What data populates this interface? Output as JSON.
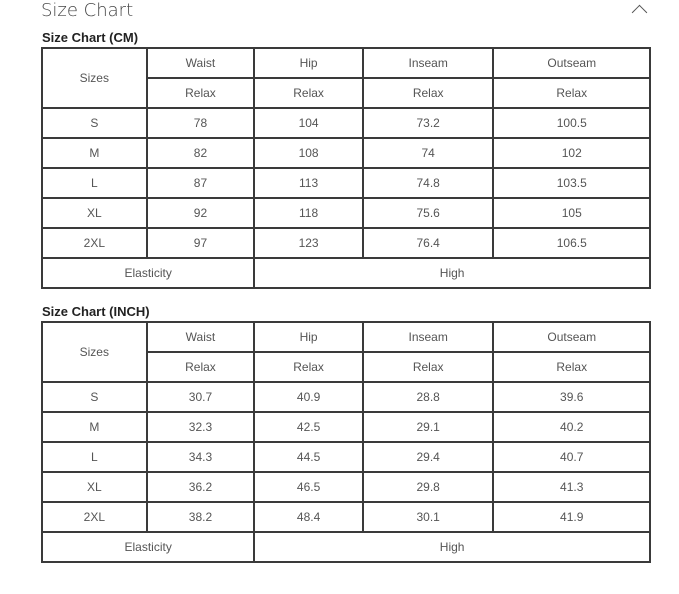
{
  "header": {
    "title": "Size Chart",
    "toggle_icon": "chevron-up-icon"
  },
  "tables": [
    {
      "title": "Size Chart (CM)",
      "sizes_label": "Sizes",
      "columns": [
        "Waist",
        "Hip",
        "Inseam",
        "Outseam"
      ],
      "subheader": [
        "Relax",
        "Relax",
        "Relax",
        "Relax"
      ],
      "rows": [
        [
          "S",
          "78",
          "104",
          "73.2",
          "100.5"
        ],
        [
          "M",
          "82",
          "108",
          "74",
          "102"
        ],
        [
          "L",
          "87",
          "113",
          "74.8",
          "103.5"
        ],
        [
          "XL",
          "92",
          "118",
          "75.6",
          "105"
        ],
        [
          "2XL",
          "97",
          "123",
          "76.4",
          "106.5"
        ]
      ],
      "elasticity_label": "Elasticity",
      "elasticity_value": "High"
    },
    {
      "title": "Size Chart (INCH)",
      "sizes_label": "Sizes",
      "columns": [
        "Waist",
        "Hip",
        "Inseam",
        "Outseam"
      ],
      "subheader": [
        "Relax",
        "Relax",
        "Relax",
        "Relax"
      ],
      "rows": [
        [
          "S",
          "30.7",
          "40.9",
          "28.8",
          "39.6"
        ],
        [
          "M",
          "32.3",
          "42.5",
          "29.1",
          "40.2"
        ],
        [
          "L",
          "34.3",
          "44.5",
          "29.4",
          "40.7"
        ],
        [
          "XL",
          "36.2",
          "46.5",
          "29.8",
          "41.3"
        ],
        [
          "2XL",
          "38.2",
          "48.4",
          "30.1",
          "41.9"
        ]
      ],
      "elasticity_label": "Elasticity",
      "elasticity_value": "High"
    }
  ]
}
